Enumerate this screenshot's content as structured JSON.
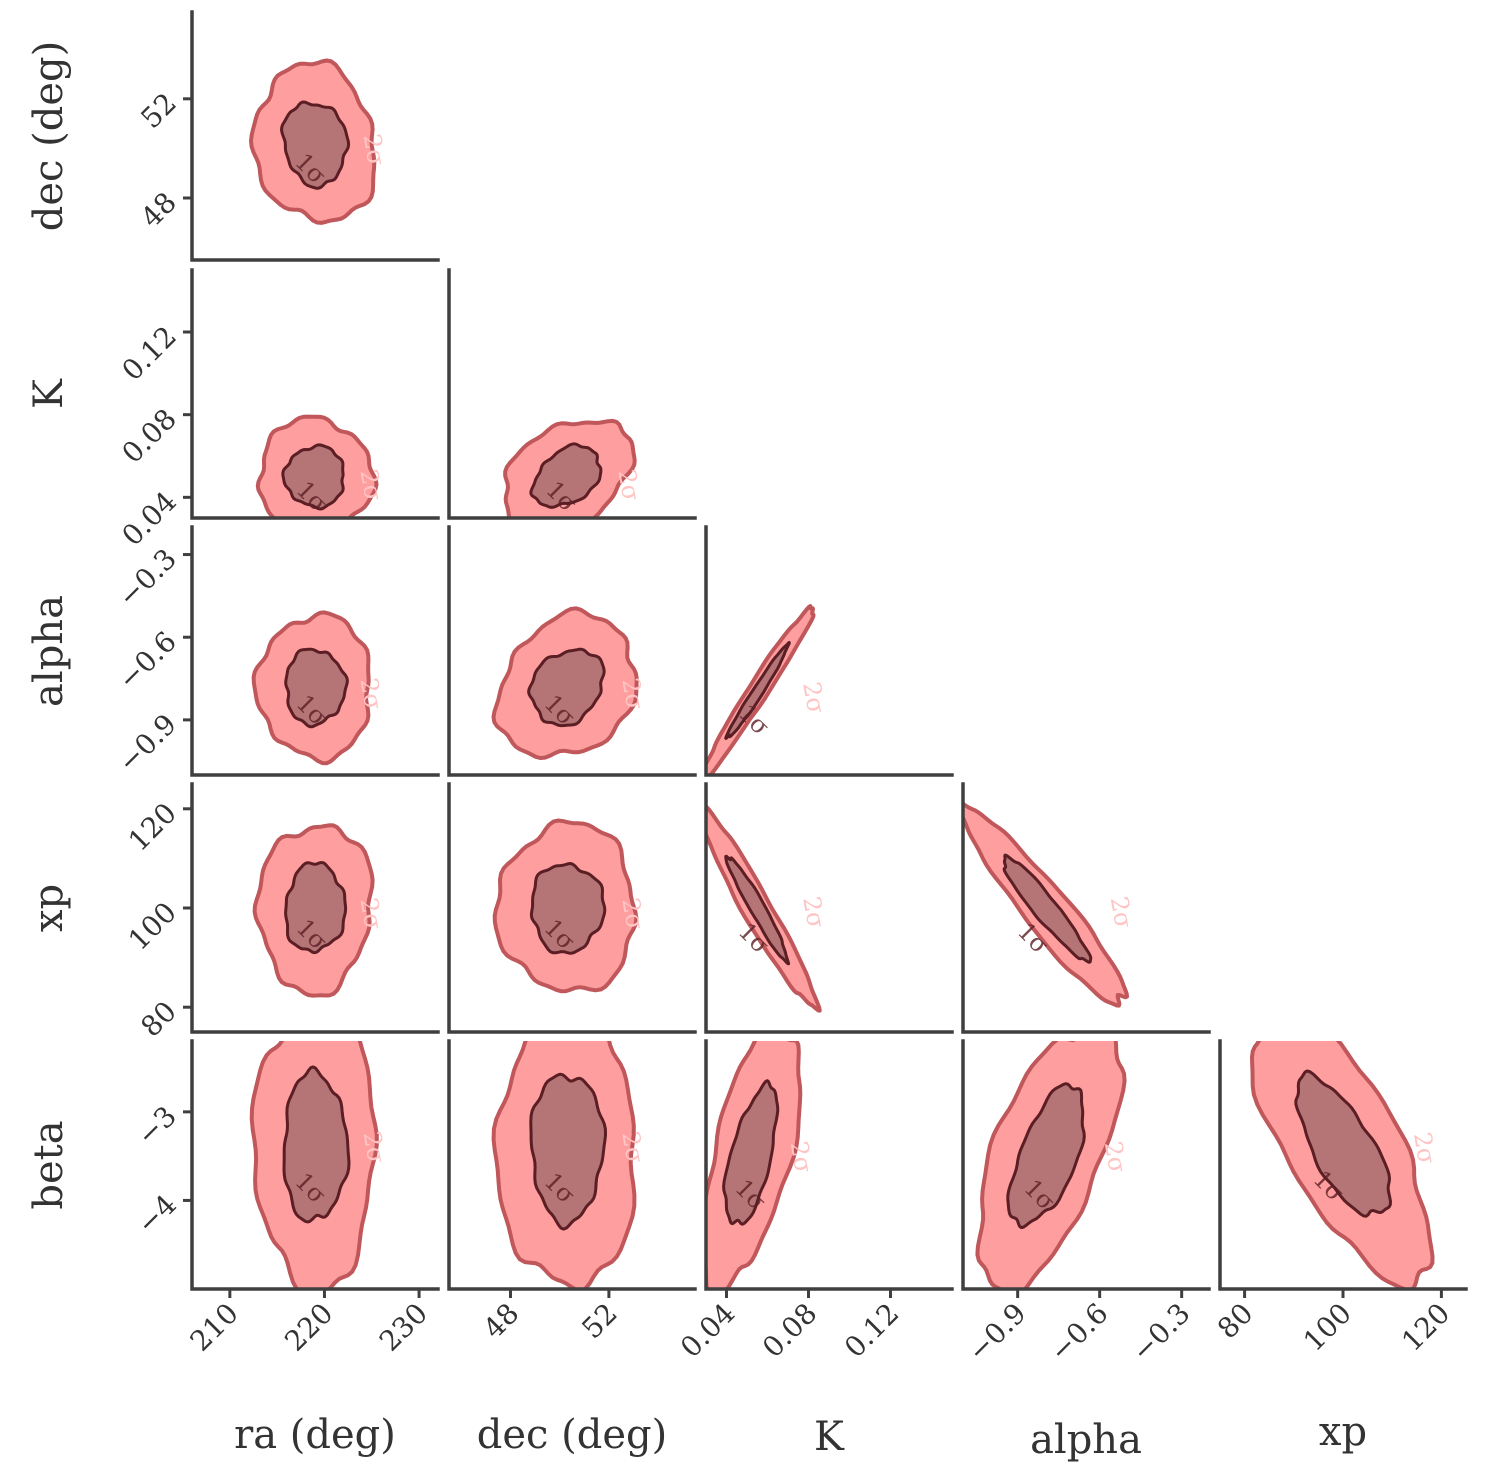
{
  "chart_data": {
    "type": "corner",
    "parameters": [
      {
        "key": "ra",
        "label": "ra (deg)",
        "range": [
          206,
          232
        ],
        "ticks": [
          210,
          220,
          230
        ],
        "tick_labels": [
          "210",
          "220",
          "230"
        ]
      },
      {
        "key": "dec",
        "label": "dec (deg)",
        "range": [
          45.5,
          55.5
        ],
        "ticks": [
          48,
          52
        ],
        "tick_labels": [
          "48",
          "52"
        ]
      },
      {
        "key": "K",
        "label": "K",
        "range": [
          0.03,
          0.15
        ],
        "ticks": [
          0.04,
          0.08,
          0.12
        ],
        "tick_labels": [
          "0.04",
          "0.08",
          "0.12"
        ]
      },
      {
        "key": "alpha",
        "label": "alpha",
        "range": [
          -1.1,
          -0.2
        ],
        "ticks": [
          -0.9,
          -0.6,
          -0.3
        ],
        "tick_labels": [
          "−0.9",
          "−0.6",
          "−0.3"
        ]
      },
      {
        "key": "xp",
        "label": "xp",
        "range": [
          75,
          125
        ],
        "ticks": [
          80,
          100,
          120
        ],
        "tick_labels": [
          "80",
          "100",
          "120"
        ]
      },
      {
        "key": "beta",
        "label": "beta",
        "range": [
          -5,
          -2.2
        ],
        "ticks": [
          -4,
          -3
        ],
        "tick_labels": [
          "−4",
          "−3"
        ]
      }
    ],
    "contour_levels": [
      "1σ",
      "2σ"
    ],
    "colors": {
      "outer_fill": "#ff9e9e",
      "outer_line": "#c0575b",
      "inner_fill": "#b57576",
      "inner_line": "#5a1e24",
      "axis": "#3f3f3f"
    },
    "panels": [
      {
        "x": "ra",
        "y": "dec",
        "cx": 219,
        "cy": 50.2,
        "sx": 3.2,
        "sy": 1.6,
        "rho": -0.1
      },
      {
        "x": "ra",
        "y": "K",
        "cx": 219,
        "cy": 0.05,
        "sx": 3.0,
        "sy": 0.014,
        "rho": 0.0
      },
      {
        "x": "dec",
        "y": "K",
        "cx": 50.3,
        "cy": 0.05,
        "sx": 1.3,
        "sy": 0.014,
        "rho": 0.35
      },
      {
        "x": "ra",
        "y": "alpha",
        "cx": 219,
        "cy": -0.78,
        "sx": 3.0,
        "sy": 0.13,
        "rho": 0.0
      },
      {
        "x": "dec",
        "y": "alpha",
        "cx": 50.3,
        "cy": -0.78,
        "sx": 1.4,
        "sy": 0.13,
        "rho": 0.2
      },
      {
        "x": "K",
        "y": "alpha",
        "cx": 0.055,
        "cy": -0.8,
        "sx": 0.014,
        "sy": 0.16,
        "rho": 0.98
      },
      {
        "x": "ra",
        "y": "xp",
        "cx": 219,
        "cy": 100,
        "sx": 3.0,
        "sy": 8.5,
        "rho": 0.05
      },
      {
        "x": "dec",
        "y": "xp",
        "cx": 50.3,
        "cy": 100,
        "sx": 1.4,
        "sy": 8.5,
        "rho": 0.0
      },
      {
        "x": "K",
        "y": "xp",
        "cx": 0.055,
        "cy": 100,
        "sx": 0.014,
        "sy": 10,
        "rho": -0.96
      },
      {
        "x": "alpha",
        "y": "xp",
        "cx": -0.8,
        "cy": 100,
        "sx": 0.15,
        "sy": 10,
        "rho": -0.94
      },
      {
        "x": "ra",
        "y": "beta",
        "cx": 219,
        "cy": -3.4,
        "sx": 3.2,
        "sy": 0.8,
        "rho": 0.0
      },
      {
        "x": "dec",
        "y": "beta",
        "cx": 50.3,
        "cy": -3.4,
        "sx": 1.4,
        "sy": 0.8,
        "rho": 0.0
      },
      {
        "x": "K",
        "y": "beta",
        "cx": 0.052,
        "cy": -3.5,
        "sx": 0.012,
        "sy": 0.75,
        "rho": 0.6
      },
      {
        "x": "alpha",
        "y": "beta",
        "cx": -0.79,
        "cy": -3.5,
        "sx": 0.13,
        "sy": 0.75,
        "rho": 0.6
      },
      {
        "x": "xp",
        "y": "beta",
        "cx": 100,
        "cy": -3.4,
        "sx": 9,
        "sy": 0.75,
        "rho": -0.7
      }
    ]
  }
}
